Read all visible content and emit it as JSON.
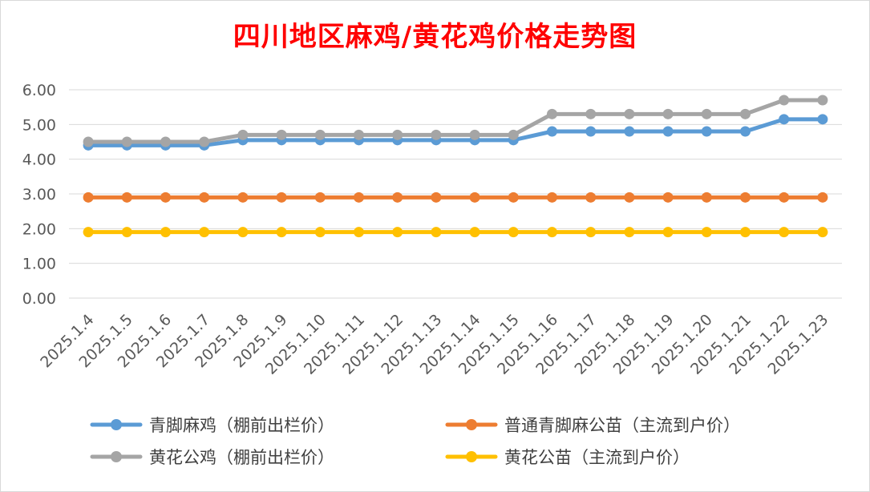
{
  "chart_data": {
    "type": "line",
    "title": "四川地区麻鸡/黄花鸡价格走势图",
    "categories": [
      "2025.1.4",
      "2025.1.5",
      "2025.1.6",
      "2025.1.7",
      "2025.1.8",
      "2025.1.9",
      "2025.1.10",
      "2025.1.11",
      "2025.1.12",
      "2025.1.13",
      "2025.1.14",
      "2025.1.15",
      "2025.1.16",
      "2025.1.17",
      "2025.1.18",
      "2025.1.19",
      "2025.1.20",
      "2025.1.21",
      "2025.1.22",
      "2025.1.23"
    ],
    "ylim": [
      0,
      6
    ],
    "ytick_labels": [
      "0.00",
      "1.00",
      "2.00",
      "3.00",
      "4.00",
      "5.00",
      "6.00"
    ],
    "grid": true,
    "legend_position": "bottom",
    "series": [
      {
        "name": "青脚麻鸡（棚前出栏价）",
        "color": "#5b9bd5",
        "values": [
          4.4,
          4.4,
          4.4,
          4.4,
          4.55,
          4.55,
          4.55,
          4.55,
          4.55,
          4.55,
          4.55,
          4.55,
          4.8,
          4.8,
          4.8,
          4.8,
          4.8,
          4.8,
          5.15,
          5.15
        ]
      },
      {
        "name": "普通青脚麻公苗（主流到户价）",
        "color": "#ed7d31",
        "values": [
          2.9,
          2.9,
          2.9,
          2.9,
          2.9,
          2.9,
          2.9,
          2.9,
          2.9,
          2.9,
          2.9,
          2.9,
          2.9,
          2.9,
          2.9,
          2.9,
          2.9,
          2.9,
          2.9,
          2.9
        ]
      },
      {
        "name": "黄花公鸡（棚前出栏价）",
        "color": "#a5a5a5",
        "values": [
          4.5,
          4.5,
          4.5,
          4.5,
          4.7,
          4.7,
          4.7,
          4.7,
          4.7,
          4.7,
          4.7,
          4.7,
          5.3,
          5.3,
          5.3,
          5.3,
          5.3,
          5.3,
          5.7,
          5.7
        ]
      },
      {
        "name": "黄花公苗（主流到户价）",
        "color": "#ffc000",
        "values": [
          1.9,
          1.9,
          1.9,
          1.9,
          1.9,
          1.9,
          1.9,
          1.9,
          1.9,
          1.9,
          1.9,
          1.9,
          1.9,
          1.9,
          1.9,
          1.9,
          1.9,
          1.9,
          1.9,
          1.9
        ]
      }
    ]
  }
}
